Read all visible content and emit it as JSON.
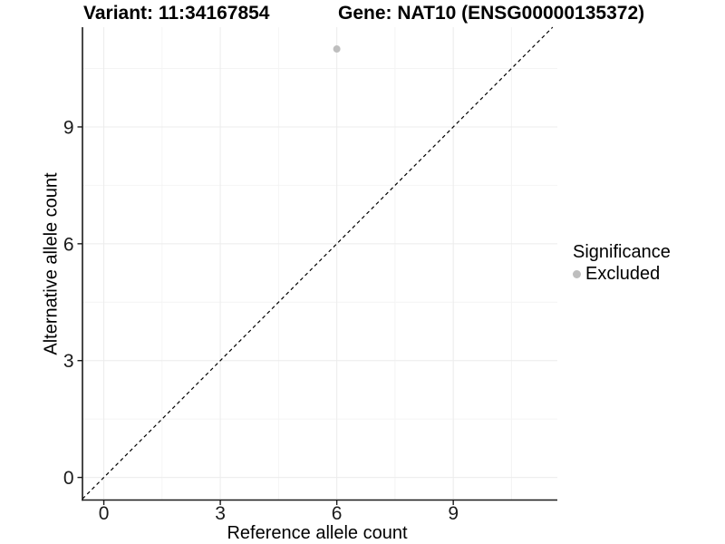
{
  "chart_data": {
    "type": "scatter",
    "title_left": "Variant: 11:34167854",
    "title_right": "Gene: NAT10 (ENSG00000135372)",
    "xlabel": "Reference allele count",
    "ylabel": "Alternative allele count",
    "xticks": [
      0,
      3,
      6,
      9
    ],
    "yticks": [
      0,
      3,
      6,
      9
    ],
    "xticks_minor": [
      1.5,
      4.5,
      7.5,
      10.5
    ],
    "yticks_minor": [
      1.5,
      4.5,
      7.5,
      10.5
    ],
    "xlim": [
      -0.55,
      11.68
    ],
    "ylim": [
      -0.58,
      11.56
    ],
    "grid": true,
    "points": [
      {
        "x": 6,
        "y": 11,
        "significance": "Excluded"
      }
    ],
    "reference_line": {
      "slope": 1,
      "intercept": 0,
      "style": "dashed",
      "color": "#000000"
    },
    "legend": {
      "title": "Significance",
      "position": "right",
      "items": [
        {
          "label": "Excluded",
          "color": "#bebebe"
        }
      ]
    },
    "colors": {
      "grid_major": "#ececec",
      "grid_minor": "#f4f4f4",
      "axis_line": "#1a1a1a",
      "tick_mark": "#1a1a1a",
      "tick_label": "#1a1a1a",
      "background": "#ffffff"
    }
  }
}
